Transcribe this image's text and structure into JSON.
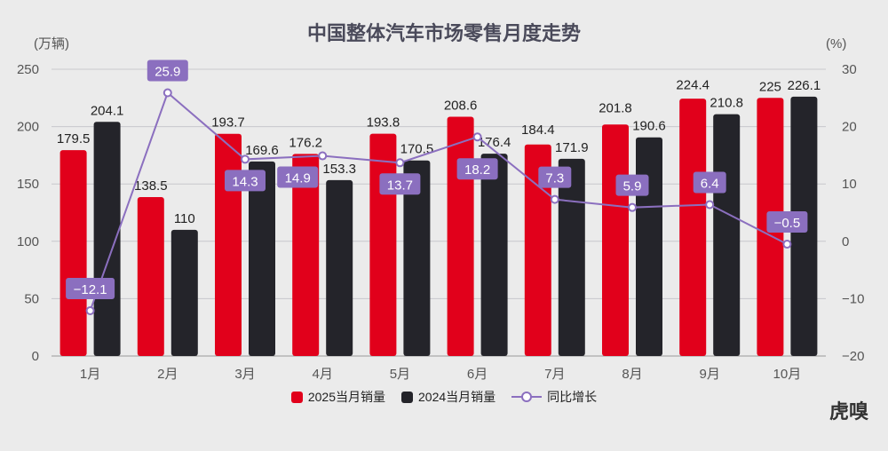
{
  "chart_data": {
    "type": "bar",
    "title": "中国整体汽车市场零售月度走势",
    "ylabel_left": "(万辆)",
    "ylabel_right": "(%)",
    "categories": [
      "1月",
      "2月",
      "3月",
      "4月",
      "5月",
      "6月",
      "7月",
      "8月",
      "9月",
      "10月"
    ],
    "ylim_left": [
      0,
      250
    ],
    "yticks_left": [
      0,
      50,
      100,
      150,
      200,
      250
    ],
    "ylim_right": [
      -20,
      30
    ],
    "yticks_right": [
      -20,
      -10,
      0,
      10,
      20,
      30
    ],
    "grid": true,
    "legend_position": "bottom",
    "series": [
      {
        "name": "2025当月销量",
        "type": "bar",
        "axis": "left",
        "color": "#e1001b",
        "values": [
          179.5,
          138.5,
          193.7,
          176.2,
          193.8,
          208.6,
          184.4,
          201.8,
          224.4,
          225
        ]
      },
      {
        "name": "2024当月销量",
        "type": "bar",
        "axis": "left",
        "color": "#24242a",
        "values": [
          204.1,
          110,
          169.6,
          153.3,
          170.5,
          176.4,
          171.9,
          190.6,
          210.8,
          226.1
        ]
      },
      {
        "name": "同比增长",
        "type": "line",
        "axis": "right",
        "color": "#8b6fbf",
        "values": [
          -12.1,
          25.9,
          14.3,
          14.9,
          13.7,
          18.2,
          7.3,
          5.9,
          6.4,
          -0.5
        ]
      }
    ]
  },
  "logo": "虎嗅"
}
